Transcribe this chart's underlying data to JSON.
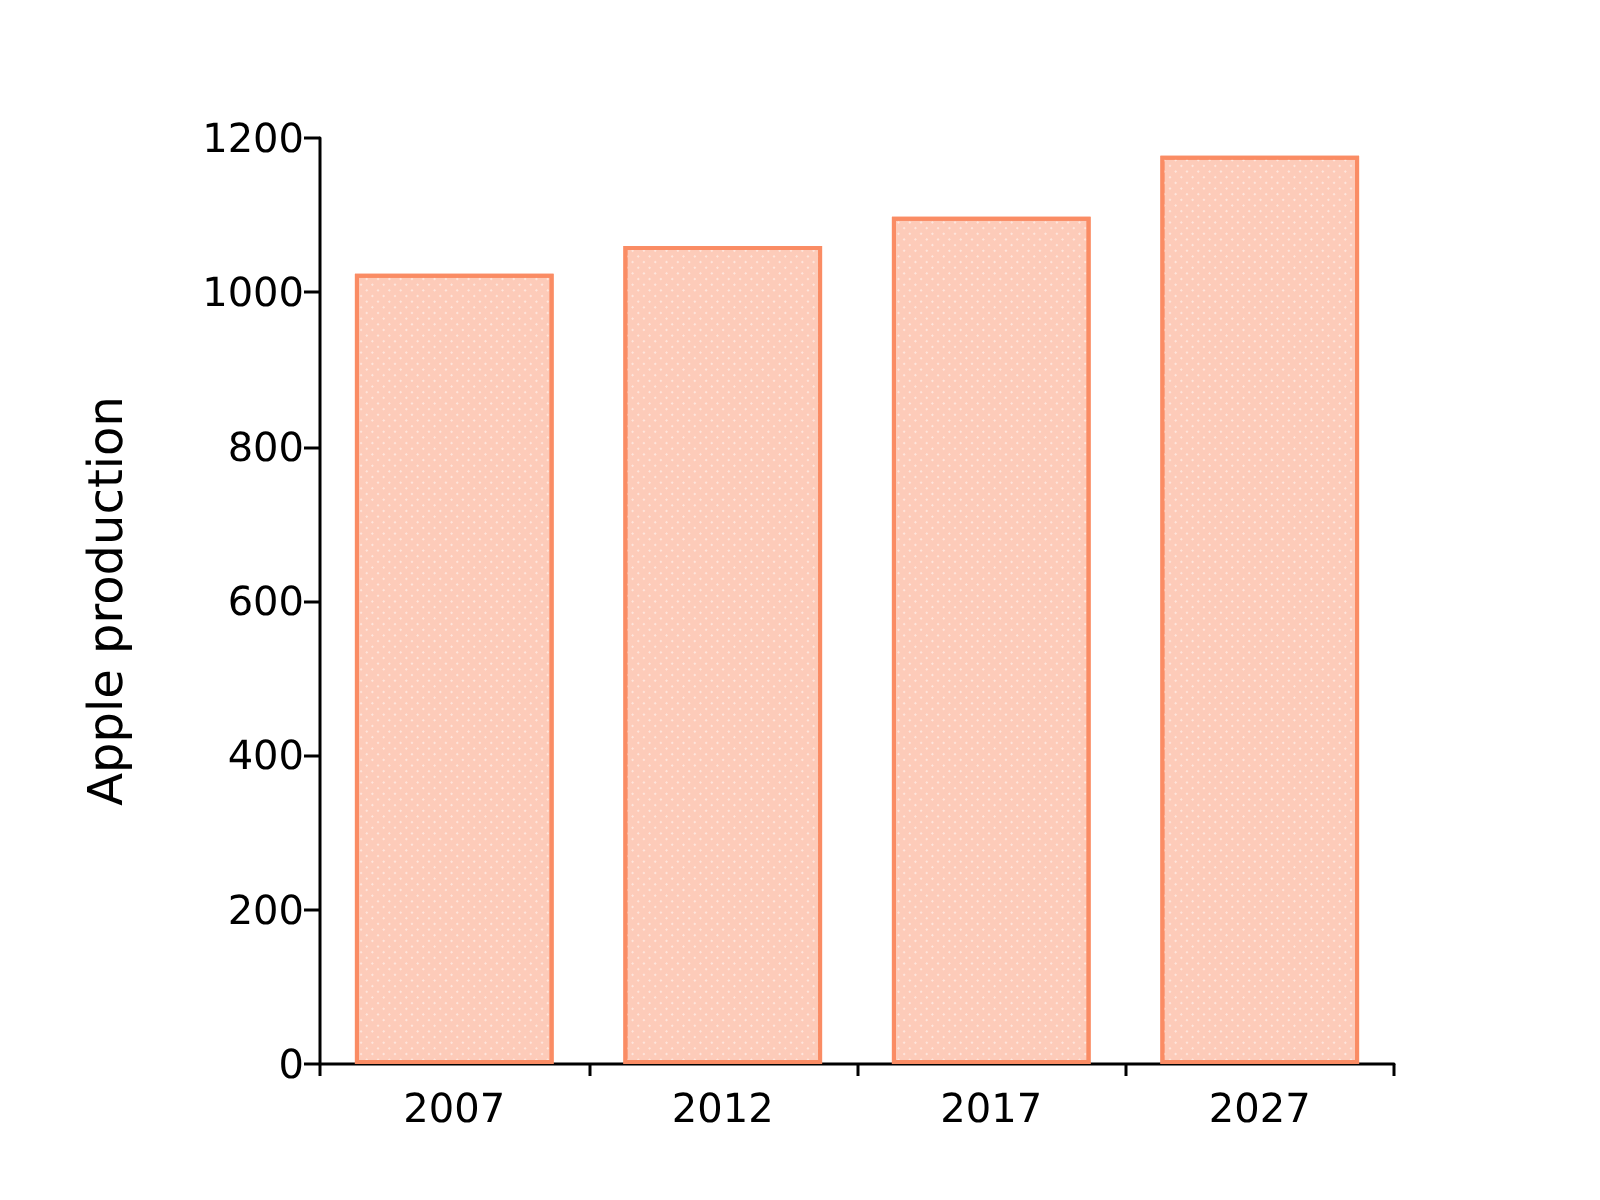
{
  "chart_data": {
    "type": "bar",
    "ylabel": "Apple production",
    "categories": [
      "2007",
      "2012",
      "2017",
      "2027"
    ],
    "values": [
      1024,
      1060,
      1098,
      1177
    ],
    "color": "#fa8c64",
    "ylim": [
      0,
      1200
    ],
    "yticks": [
      0,
      200,
      400,
      600,
      800,
      1000,
      1200
    ],
    "grid": false
  }
}
